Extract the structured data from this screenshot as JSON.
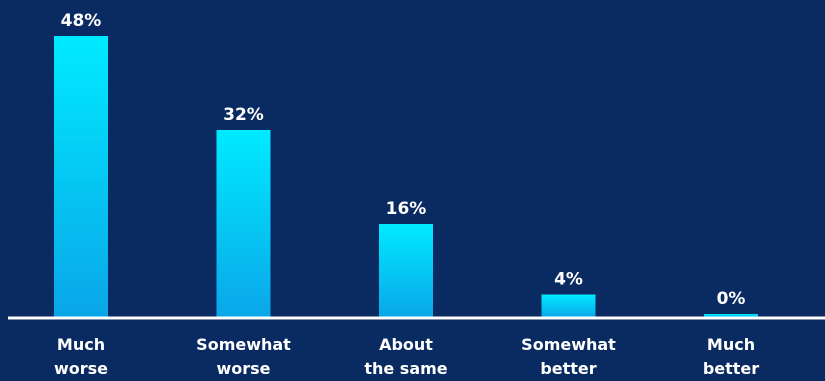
{
  "chart_data": {
    "type": "bar",
    "categories": [
      [
        "Much",
        "worse"
      ],
      [
        "Somewhat",
        "worse"
      ],
      [
        "About",
        "the same"
      ],
      [
        "Somewhat",
        "better"
      ],
      [
        "Much",
        "better"
      ]
    ],
    "values": [
      48,
      32,
      16,
      4,
      0
    ],
    "value_labels": [
      "48%",
      "32%",
      "16%",
      "4%",
      "0%"
    ],
    "title": "",
    "xlabel": "",
    "ylabel": "",
    "ylim": [
      0,
      50
    ],
    "grid": false,
    "legend": "none",
    "colors": {
      "background": "#0a2a62",
      "bar_top": "#00eaff",
      "bar_bottom": "#0aa6e8",
      "baseline": "#ffffff",
      "text": "#ffffff"
    }
  }
}
